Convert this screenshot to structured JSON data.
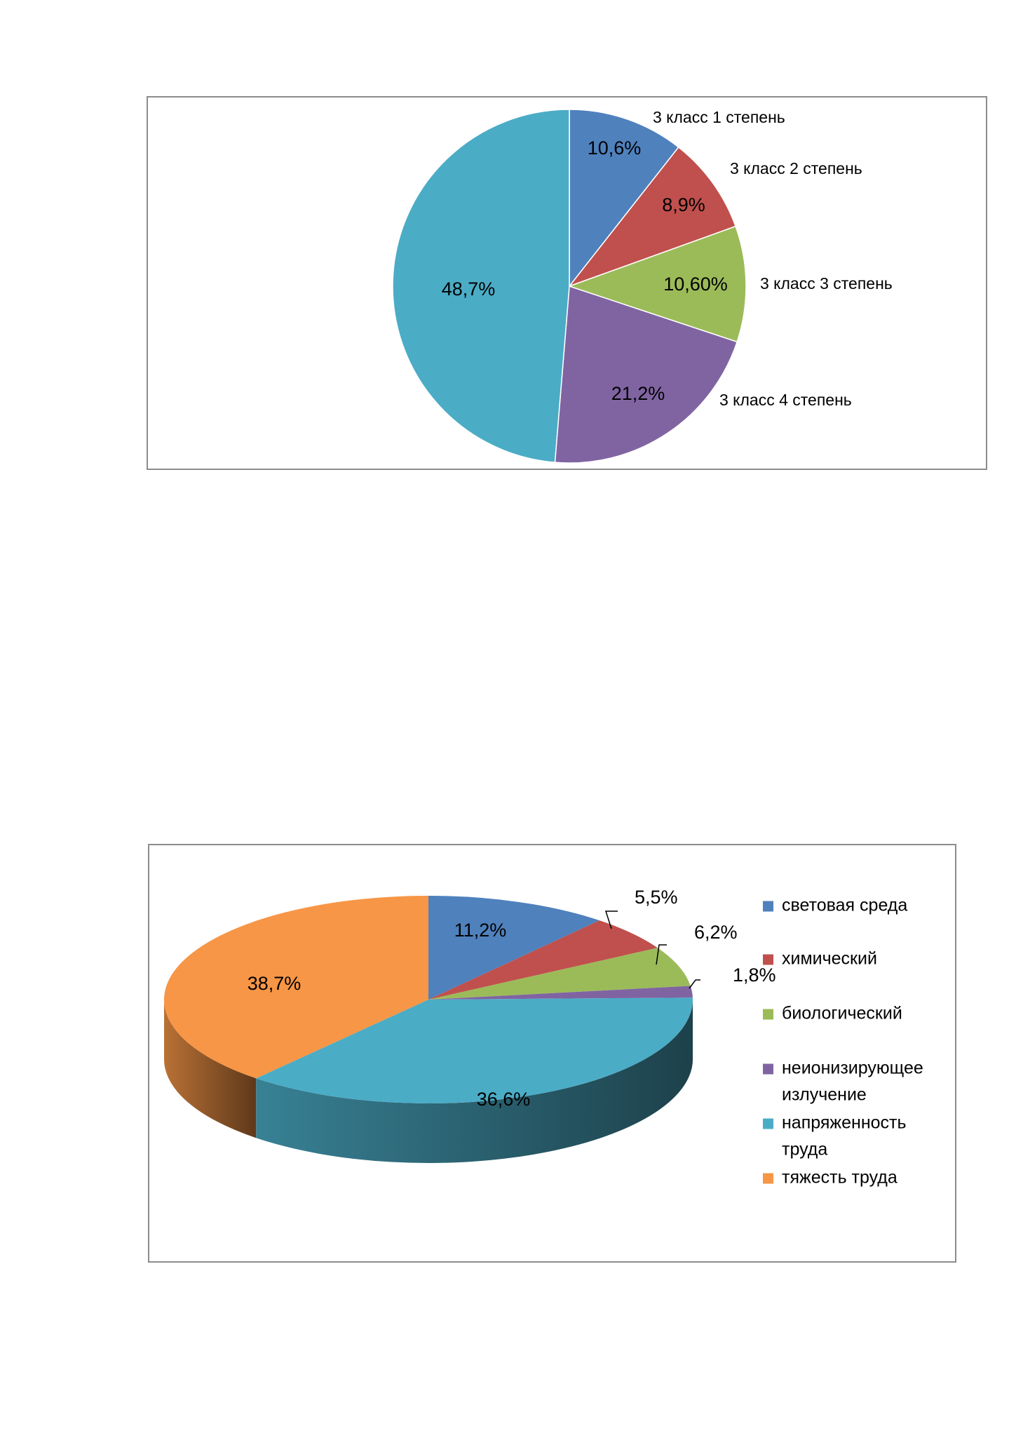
{
  "chart_data": [
    {
      "type": "pie",
      "title": "",
      "categories": [
        "3 класс 1 степень",
        "3 класс 2 степень",
        "3 класс 3 степень",
        "3 класс 4 степень",
        ""
      ],
      "values": [
        10.6,
        8.9,
        10.6,
        21.2,
        48.7
      ],
      "value_labels": [
        "10,6%",
        "8,9%",
        "10,60%",
        "21,2%",
        "48,7%"
      ],
      "colors": [
        "#4F81BD",
        "#C0504D",
        "#9BBB59",
        "#8064A2",
        "#4BACC6"
      ],
      "legend": "none",
      "start_angle_deg": 0,
      "direction": "clockwise"
    },
    {
      "type": "pie",
      "title": "",
      "style": "3d",
      "categories": [
        "световая среда",
        "химический",
        "биологический",
        "неионизирующее излучение",
        "напряженность труда",
        "тяжесть труда"
      ],
      "legend_lines": [
        [
          "световая среда"
        ],
        [
          "химический"
        ],
        [
          "биологический"
        ],
        [
          "неионизирующее",
          "излучение"
        ],
        [
          "напряженность",
          "труда"
        ],
        [
          "тяжесть труда"
        ]
      ],
      "values": [
        11.2,
        5.5,
        6.2,
        1.8,
        36.6,
        38.7
      ],
      "value_labels": [
        "11,2%",
        "5,5%",
        "6,2%",
        "1,8%",
        "36,6%",
        "38,7%"
      ],
      "colors": [
        "#4F81BD",
        "#C0504D",
        "#9BBB59",
        "#8064A2",
        "#4BACC6",
        "#F79646"
      ],
      "legend": "right"
    }
  ]
}
